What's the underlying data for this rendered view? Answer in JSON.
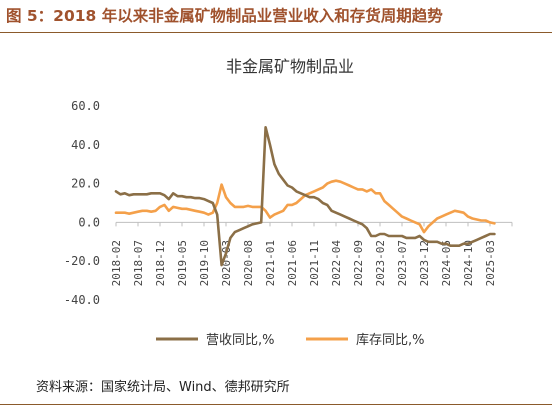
{
  "figure_title": "图 5：2018 年以来非金属矿物制品业营业收入和存货周期趋势",
  "source_note": "资料来源：国家统计局、Wind、德邦研究所",
  "chart_data": {
    "type": "line",
    "title": "非金属矿物制品业",
    "xlabel": "",
    "ylabel": "",
    "ylim": [
      -40,
      60
    ],
    "yticks": [
      "60.0",
      "40.0",
      "20.0",
      "0.0",
      "-20.0",
      "-40.0"
    ],
    "ytick_values": [
      60,
      40,
      20,
      0,
      -20,
      -40
    ],
    "xtick_labels": [
      "2018-02",
      "2018-07",
      "2018-12",
      "2019-05",
      "2019-10",
      "2020-03",
      "2020-08",
      "2021-01",
      "2021-06",
      "2021-11",
      "2022-04",
      "2022-09",
      "2023-02",
      "2023-07",
      "2023-12",
      "2024-05",
      "2024-10",
      "2025-03"
    ],
    "x_start": "2018-02",
    "x_end": "2025-08",
    "grid": false,
    "legend": "bottom",
    "series": [
      {
        "name": "营收同比,%",
        "color": "#8b6f47",
        "values": [
          16,
          14.5,
          15,
          14,
          14.5,
          14.5,
          14.5,
          14.5,
          15,
          15,
          15,
          14,
          12,
          15,
          13.5,
          13.5,
          13,
          13,
          12.5,
          12.5,
          12,
          11,
          10,
          4,
          -22,
          -16,
          -8,
          -5,
          -4,
          -3,
          -2,
          -1,
          -0.5,
          0,
          49,
          40,
          30,
          25,
          22,
          19,
          18,
          16,
          15,
          14,
          13,
          13,
          12,
          10,
          9,
          6,
          5,
          4,
          3,
          2,
          1,
          0,
          -1,
          -3,
          -7,
          -7,
          -6,
          -6,
          -7,
          -7,
          -7,
          -7,
          -8,
          -8,
          -8,
          -7,
          -9,
          -10,
          -10,
          -10,
          -11,
          -11,
          -12,
          -12,
          -12,
          -11,
          -11,
          -10,
          -9,
          -8,
          -7,
          -6,
          -6
        ]
      },
      {
        "name": "库存同比,%",
        "color": "#f4a04a",
        "values": [
          5,
          5,
          5,
          4.5,
          5,
          5.5,
          6,
          6,
          5.5,
          6,
          8,
          9,
          6,
          8,
          7.5,
          7,
          7,
          6.5,
          6,
          5.5,
          5,
          4,
          5,
          10,
          19.5,
          13,
          10,
          8,
          8,
          8,
          8.5,
          8,
          8,
          8,
          6,
          2.5,
          4,
          5,
          6,
          9,
          9,
          10,
          12,
          14,
          15,
          16,
          17,
          18,
          20,
          21,
          21.5,
          21,
          20,
          19,
          18,
          17,
          17,
          16,
          17,
          15,
          15,
          11,
          9,
          7,
          5,
          3,
          2,
          1,
          0,
          -1,
          -5,
          -2,
          0,
          2,
          3,
          4,
          5,
          6,
          5.5,
          5,
          3,
          2,
          1.5,
          1,
          1,
          0,
          -0.5
        ]
      }
    ]
  }
}
